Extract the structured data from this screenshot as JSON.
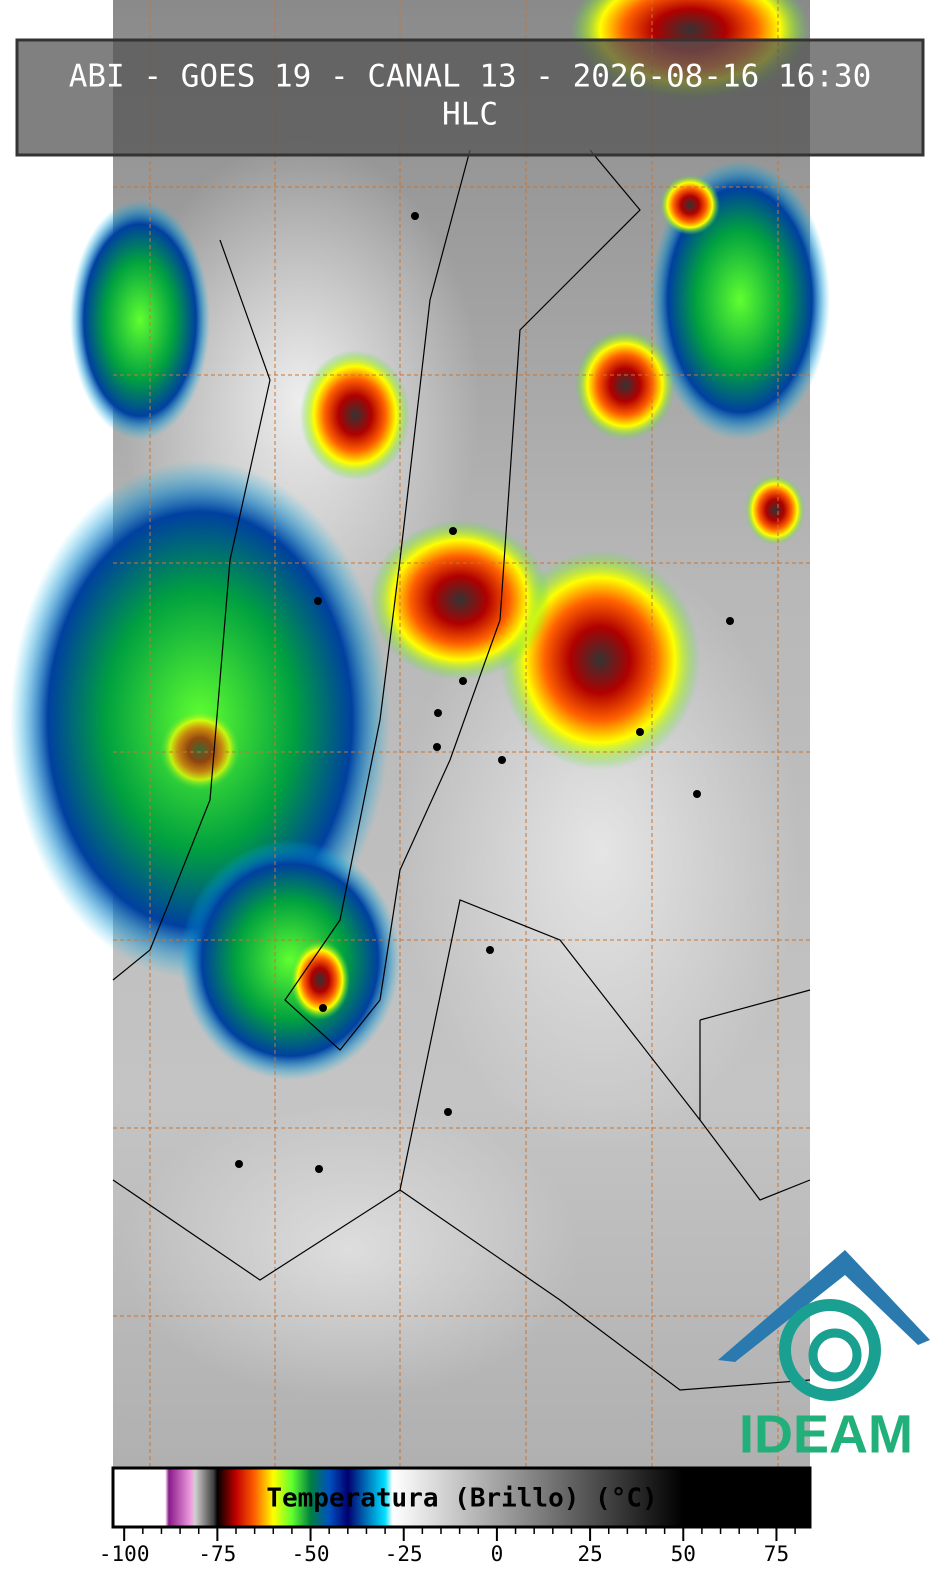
{
  "title": "ABI - GOES 19 - CANAL 13 - 2026-08-16 16:30",
  "subtitle": "HLC",
  "logo": "IDEAM",
  "colorbar": {
    "label": "Temperatura (Brillo) (°C)",
    "xlim": [
      -103,
      84
    ],
    "xticks": [
      -100,
      -75,
      -50,
      -25,
      0,
      25,
      50,
      75
    ],
    "minor_ticks": [
      -95,
      -90,
      -85,
      -80,
      -70,
      -65,
      -60,
      -55,
      -45,
      -40,
      -35,
      -30,
      -20,
      -15,
      -10,
      -5,
      5,
      10,
      15,
      20,
      30,
      35,
      40,
      45,
      55,
      60,
      65,
      70,
      80
    ],
    "colormap": [
      {
        "value": -103,
        "color": "#ffffff"
      },
      {
        "value": -89,
        "color": "#ffffff"
      },
      {
        "value": -88,
        "color": "#8a1a8a"
      },
      {
        "value": -82,
        "color": "#f0a0e0"
      },
      {
        "value": -81,
        "color": "#d0d0d0"
      },
      {
        "value": -76,
        "color": "#404040"
      },
      {
        "value": -75,
        "color": "#000000"
      },
      {
        "value": -70,
        "color": "#c00000"
      },
      {
        "value": -65,
        "color": "#ff6000"
      },
      {
        "value": -60,
        "color": "#ffff00"
      },
      {
        "value": -55,
        "color": "#60ff30"
      },
      {
        "value": -50,
        "color": "#008040"
      },
      {
        "value": -45,
        "color": "#0050c0"
      },
      {
        "value": -40,
        "color": "#000070"
      },
      {
        "value": -30,
        "color": "#00e0ff"
      },
      {
        "value": -28,
        "color": "#ffffff"
      },
      {
        "value": 50,
        "color": "#000000"
      },
      {
        "value": 84,
        "color": "#000000"
      }
    ]
  }
}
